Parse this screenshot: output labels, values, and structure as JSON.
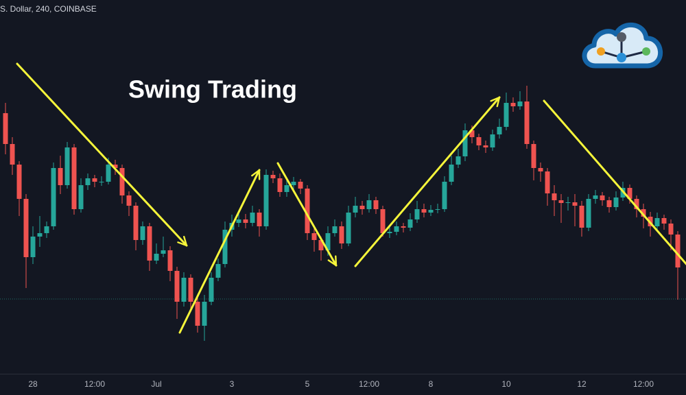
{
  "chart_data": {
    "type": "candlestick",
    "title": "Swing Trading",
    "source": "S. Dollar, 240, COINBASE",
    "categories": [
      null,
      null,
      null,
      null,
      "28",
      null,
      null,
      null,
      null,
      null,
      null,
      null,
      null,
      "12:00",
      null,
      null,
      null,
      null,
      null,
      null,
      null,
      null,
      "Jul",
      null,
      null,
      null,
      null,
      null,
      null,
      null,
      null,
      null,
      null,
      "3",
      null,
      null,
      null,
      null,
      null,
      null,
      null,
      null,
      null,
      null,
      "5",
      null,
      null,
      null,
      null,
      null,
      null,
      null,
      null,
      "12:00",
      null,
      null,
      null,
      null,
      null,
      null,
      null,
      null,
      "8",
      null,
      null,
      null,
      null,
      null,
      null,
      null,
      null,
      null,
      null,
      "10",
      null,
      null,
      null,
      null,
      null,
      null,
      null,
      null,
      null,
      null,
      "12",
      null,
      null,
      null,
      null,
      null,
      null,
      null,
      null,
      "12:00",
      null,
      null,
      null,
      null,
      null
    ],
    "open": [
      380,
      335,
      305,
      255,
      170,
      200,
      205,
      215,
      300,
      275,
      330,
      240,
      275,
      285,
      280,
      280,
      305,
      300,
      260,
      245,
      195,
      215,
      165,
      175,
      180,
      150,
      105,
      140,
      105,
      70,
      105,
      140,
      160,
      210,
      220,
      225,
      220,
      235,
      215,
      290,
      285,
      265,
      275,
      280,
      270,
      205,
      195,
      180,
      205,
      215,
      190,
      235,
      245,
      240,
      253,
      240,
      205,
      207,
      215,
      213,
      225,
      240,
      235,
      239,
      240,
      280,
      305,
      317,
      355,
      345,
      333,
      330,
      349,
      360,
      395,
      390,
      397,
      335,
      300,
      295,
      263,
      253,
      249,
      250,
      245,
      213,
      255,
      260,
      253,
      243,
      257,
      271,
      255,
      240,
      229,
      215,
      227,
      219,
      203
    ],
    "high": [
      395,
      345,
      310,
      262,
      215,
      230,
      222,
      308,
      318,
      338,
      335,
      285,
      292,
      290,
      288,
      315,
      312,
      305,
      266,
      250,
      222,
      220,
      190,
      200,
      186,
      156,
      148,
      145,
      112,
      115,
      148,
      168,
      222,
      232,
      236,
      233,
      245,
      240,
      298,
      296,
      292,
      283,
      287,
      284,
      275,
      215,
      200,
      215,
      225,
      222,
      245,
      258,
      252,
      262,
      258,
      245,
      215,
      222,
      220,
      234,
      252,
      248,
      246,
      248,
      288,
      318,
      328,
      365,
      362,
      350,
      340,
      356,
      372,
      410,
      403,
      412,
      420,
      340,
      308,
      300,
      275,
      262,
      258,
      262,
      252,
      262,
      268,
      265,
      258,
      266,
      280,
      276,
      260,
      248,
      236,
      235,
      232,
      225,
      208
    ],
    "low": [
      320,
      290,
      230,
      125,
      160,
      185,
      198,
      210,
      262,
      270,
      232,
      235,
      268,
      272,
      274,
      276,
      290,
      248,
      230,
      180,
      188,
      150,
      160,
      170,
      135,
      80,
      98,
      95,
      60,
      48,
      100,
      135,
      155,
      200,
      214,
      212,
      215,
      200,
      210,
      278,
      258,
      258,
      268,
      262,
      195,
      178,
      165,
      172,
      200,
      182,
      186,
      228,
      232,
      235,
      233,
      200,
      198,
      202,
      206,
      208,
      220,
      228,
      230,
      234,
      236,
      275,
      300,
      310,
      336,
      326,
      322,
      325,
      343,
      355,
      382,
      385,
      328,
      282,
      280,
      245,
      230,
      220,
      238,
      215,
      200,
      208,
      248,
      245,
      235,
      238,
      252,
      248,
      228,
      212,
      200,
      208,
      210,
      180,
      108
    ],
    "close": [
      335,
      305,
      255,
      170,
      200,
      205,
      215,
      300,
      275,
      330,
      240,
      275,
      285,
      280,
      280,
      305,
      300,
      260,
      245,
      195,
      215,
      165,
      175,
      180,
      150,
      105,
      140,
      105,
      70,
      105,
      140,
      160,
      210,
      220,
      225,
      220,
      235,
      215,
      290,
      285,
      265,
      275,
      280,
      270,
      205,
      195,
      180,
      205,
      215,
      190,
      235,
      245,
      240,
      253,
      240,
      205,
      207,
      215,
      213,
      225,
      240,
      235,
      239,
      240,
      280,
      305,
      317,
      355,
      345,
      333,
      330,
      349,
      360,
      395,
      390,
      397,
      335,
      300,
      295,
      263,
      253,
      249,
      250,
      245,
      213,
      255,
      260,
      253,
      243,
      257,
      271,
      255,
      240,
      229,
      215,
      227,
      219,
      203,
      155
    ],
    "ylim": [
      0,
      545
    ],
    "up_color": "#26a69a",
    "down_color": "#ef5350",
    "reference_line": 109
  }
}
